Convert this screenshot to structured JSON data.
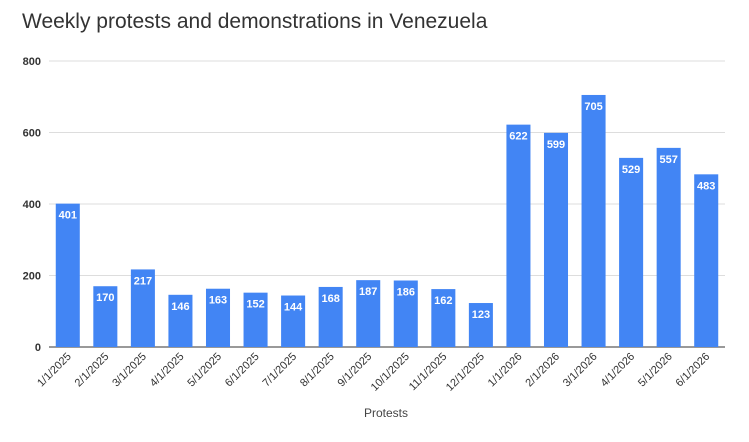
{
  "chart_data": {
    "type": "bar",
    "title": "Weekly protests and demonstrations in Venezuela",
    "xlabel": "Protests",
    "ylabel": "",
    "categories": [
      "1/1/2025",
      "2/1/2025",
      "3/1/2025",
      "4/1/2025",
      "5/1/2025",
      "6/1/2025",
      "7/1/2025",
      "8/1/2025",
      "9/1/2025",
      "10/1/2025",
      "11/1/2025",
      "12/1/2025",
      "1/1/2026",
      "2/1/2026",
      "3/1/2026",
      "4/1/2026",
      "5/1/2026",
      "6/1/2026"
    ],
    "values": [
      401,
      170,
      217,
      146,
      163,
      152,
      144,
      168,
      187,
      186,
      162,
      123,
      622,
      599,
      705,
      529,
      557,
      483
    ],
    "ylim": [
      0,
      800
    ],
    "yticks": [
      0,
      200,
      400,
      600,
      800
    ],
    "grid": true,
    "legend": "none",
    "bar_color": "#4285f4",
    "data_labels": true
  }
}
